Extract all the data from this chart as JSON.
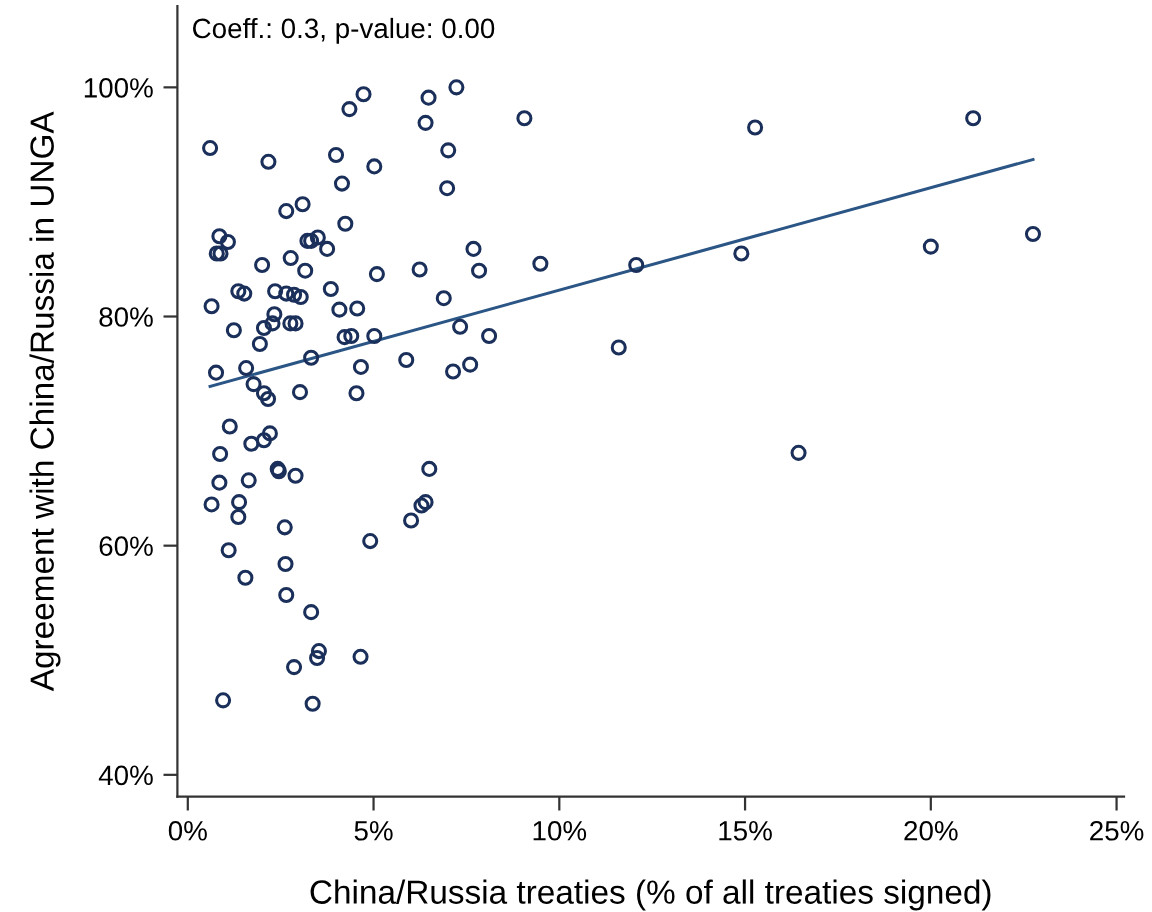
{
  "chart_data": {
    "type": "scatter",
    "xlabel": "China/Russia treaties (% of all treaties signed)",
    "ylabel": "Agreement with China/Russia in UNGA",
    "annotations": [
      "Coeff.: 0.3, p-value: 0.00"
    ],
    "xlim": [
      -0.28,
      25.2
    ],
    "ylim": [
      38.1,
      107.1
    ],
    "xticks": [
      {
        "value": 0,
        "label": "0%"
      },
      {
        "value": 5,
        "label": "5%"
      },
      {
        "value": 10,
        "label": "10%"
      },
      {
        "value": 15,
        "label": "15%"
      },
      {
        "value": 20,
        "label": "20%"
      },
      {
        "value": 25,
        "label": "25%"
      }
    ],
    "yticks": [
      {
        "value": 40,
        "label": "40%"
      },
      {
        "value": 60,
        "label": "60%"
      },
      {
        "value": 80,
        "label": "80%"
      },
      {
        "value": 100,
        "label": "100%"
      }
    ],
    "grid": false,
    "legend": false,
    "series": [
      {
        "marker": "circle",
        "color": "#1a2f5a",
        "x": [
          0.6,
          2.17,
          4.35,
          4.73,
          6.48,
          6.4,
          7.23,
          9.06,
          3.99,
          5.02,
          4.15,
          7.01,
          6.98,
          2.65,
          3.09,
          4.24,
          0.85,
          1.08,
          0.78,
          0.88,
          3.22,
          3.32,
          3.5,
          3.75,
          2.77,
          2.0,
          3.16,
          5.09,
          6.24,
          7.69,
          7.84,
          9.49,
          1.36,
          1.52,
          2.35,
          2.65,
          2.86,
          3.04,
          3.85,
          0.64,
          4.08,
          4.56,
          6.89,
          2.33,
          2.28,
          2.05,
          1.24,
          2.76,
          2.9,
          1.94,
          4.22,
          4.4,
          5.02,
          7.33,
          8.11,
          0.76,
          1.57,
          1.77,
          2.05,
          2.16,
          3.02,
          3.32,
          4.54,
          4.66,
          5.88,
          7.14,
          7.6,
          1.13,
          1.71,
          2.05,
          2.21,
          0.87,
          0.85,
          1.64,
          0.64,
          1.38,
          1.36,
          2.42,
          2.45,
          2.9,
          6.5,
          2.61,
          6.4,
          6.29,
          6.01,
          4.91,
          1.1,
          1.55,
          2.63,
          2.65,
          3.32,
          3.53,
          3.48,
          4.65,
          2.86,
          0.95,
          3.36,
          15.27,
          21.14,
          12.07,
          14.9,
          20.0,
          22.75,
          11.6,
          16.44
        ],
        "values": [
          94.7,
          93.5,
          98.1,
          99.4,
          99.1,
          96.9,
          100,
          97.3,
          94.1,
          93.1,
          91.6,
          94.5,
          91.2,
          89.2,
          89.8,
          88.1,
          87.0,
          86.5,
          85.5,
          85.5,
          86.6,
          86.6,
          86.9,
          85.9,
          85.1,
          84.5,
          84.0,
          83.7,
          84.1,
          85.9,
          84.0,
          84.6,
          82.2,
          82.0,
          82.2,
          82.0,
          81.9,
          81.7,
          82.4,
          80.9,
          80.6,
          80.7,
          81.6,
          80.2,
          79.4,
          79.0,
          78.8,
          79.4,
          79.4,
          77.6,
          78.2,
          78.3,
          78.3,
          79.1,
          78.3,
          75.1,
          75.5,
          74.1,
          73.3,
          72.8,
          73.4,
          76.4,
          73.3,
          75.6,
          76.2,
          75.2,
          75.8,
          70.4,
          68.9,
          69.2,
          69.8,
          68.0,
          65.5,
          65.7,
          63.6,
          63.8,
          62.5,
          66.7,
          66.5,
          66.1,
          66.7,
          61.6,
          63.8,
          63.5,
          62.2,
          60.4,
          59.6,
          57.2,
          58.4,
          55.7,
          54.2,
          50.8,
          50.2,
          50.3,
          49.4,
          46.5,
          46.2,
          96.5,
          97.3,
          84.5,
          85.5,
          86.1,
          87.2,
          77.3,
          68.1
        ]
      },
      {
        "type": "line",
        "marker": "none",
        "line_style": "solid",
        "color": "#2a5585",
        "x": [
          0.6,
          22.75
        ],
        "values": [
          73.9,
          93.7
        ]
      }
    ]
  }
}
